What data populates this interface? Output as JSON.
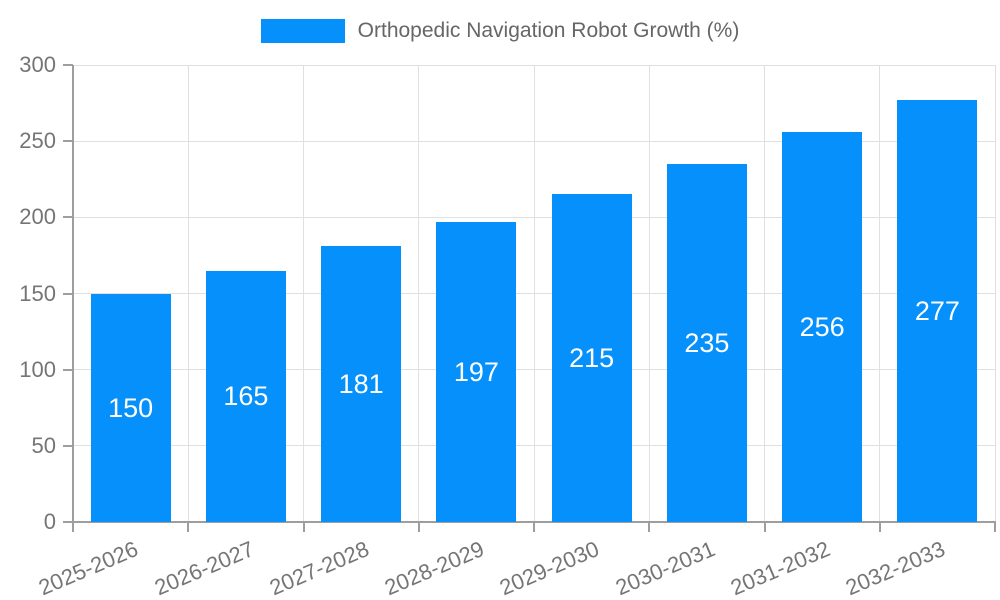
{
  "chart_data": {
    "type": "bar",
    "title": "Orthopedic Navigation Robot Growth (%)",
    "xlabel": "",
    "ylabel": "",
    "categories": [
      "2025-2026",
      "2026-2027",
      "2027-2028",
      "2028-2029",
      "2029-2030",
      "2030-2031",
      "2031-2032",
      "2032-2033"
    ],
    "values": [
      150,
      165,
      181,
      197,
      215,
      235,
      256,
      277
    ],
    "ylim": [
      0,
      300
    ],
    "yticks": [
      0,
      50,
      100,
      150,
      200,
      250,
      300
    ],
    "grid": true,
    "x_label_rotation_deg": -23,
    "legend": {
      "position": "top",
      "label": "Orthopedic Navigation Robot Growth (%)"
    },
    "colors": {
      "bar": "#0590fb",
      "value_label": "#ffffff",
      "axis_line": "#9e9e9e",
      "gridline": "#e0e0e0",
      "tick_label": "#757575",
      "legend_text": "#666666",
      "background": "#ffffff"
    }
  }
}
